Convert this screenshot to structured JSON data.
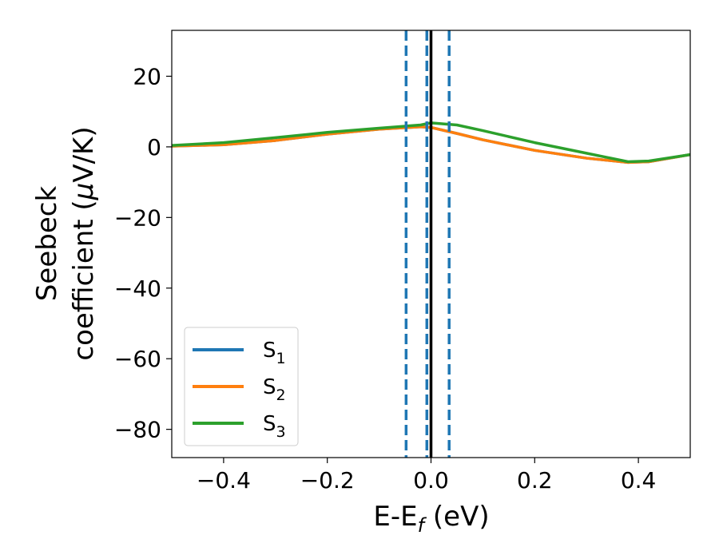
{
  "chart_data": {
    "type": "line",
    "xlabel_main": "E-E",
    "xlabel_sub": "f",
    "xlabel_unit": " (eV)",
    "ylabel_line1": "Seebeck",
    "ylabel_line2_prefix": "coefficient  (",
    "ylabel_mu": "μ",
    "ylabel_line2_suffix": "V/K)",
    "xlim": [
      -0.5,
      0.5
    ],
    "ylim": [
      -88,
      33
    ],
    "x_ticks": [
      -0.4,
      -0.2,
      0.0,
      0.2,
      0.4
    ],
    "x_tick_labels": [
      "−0.4",
      "−0.2",
      "0.0",
      "0.2",
      "0.4"
    ],
    "y_ticks": [
      20,
      0,
      -20,
      -40,
      -60,
      -80
    ],
    "y_tick_labels": [
      "20",
      "0",
      "−20",
      "−40",
      "−60",
      "−80"
    ],
    "grid": false,
    "legend_position": "lower-left",
    "series": [
      {
        "name_main": "S",
        "name_sub": "1",
        "color": "#1f77b4",
        "x": [
          -0.5,
          -0.4,
          -0.3,
          -0.2,
          -0.1,
          -0.02,
          0.0,
          0.05,
          0.1,
          0.2,
          0.3,
          0.38,
          0.42,
          0.5
        ],
        "y": [
          0.2,
          0.6,
          1.8,
          3.6,
          5.0,
          5.7,
          5.5,
          3.8,
          2.0,
          -1.0,
          -3.2,
          -4.4,
          -4.2,
          -2.2
        ]
      },
      {
        "name_main": "S",
        "name_sub": "2",
        "color": "#ff7f0e",
        "x": [
          -0.5,
          -0.4,
          -0.3,
          -0.2,
          -0.1,
          -0.02,
          0.0,
          0.05,
          0.1,
          0.2,
          0.3,
          0.38,
          0.42,
          0.5
        ],
        "y": [
          0.2,
          0.6,
          1.8,
          3.6,
          5.0,
          5.7,
          5.5,
          3.8,
          2.0,
          -1.0,
          -3.2,
          -4.4,
          -4.2,
          -2.2
        ]
      },
      {
        "name_main": "S",
        "name_sub": "3",
        "color": "#2ca02c",
        "x": [
          -0.5,
          -0.4,
          -0.3,
          -0.2,
          -0.1,
          -0.02,
          0.0,
          0.05,
          0.1,
          0.2,
          0.3,
          0.38,
          0.42,
          0.5
        ],
        "y": [
          0.4,
          1.2,
          2.6,
          4.1,
          5.3,
          6.2,
          6.8,
          6.2,
          4.6,
          1.2,
          -1.8,
          -4.2,
          -4.0,
          -2.2
        ]
      }
    ],
    "vertical_lines": [
      {
        "x": -0.048,
        "style": "dashed",
        "color": "#1f77b4"
      },
      {
        "x": -0.008,
        "style": "dashed",
        "color": "#1f77b4"
      },
      {
        "x": 0.035,
        "style": "dashed",
        "color": "#1f77b4"
      },
      {
        "x": 0.0,
        "style": "solid",
        "color": "#000000"
      }
    ]
  }
}
